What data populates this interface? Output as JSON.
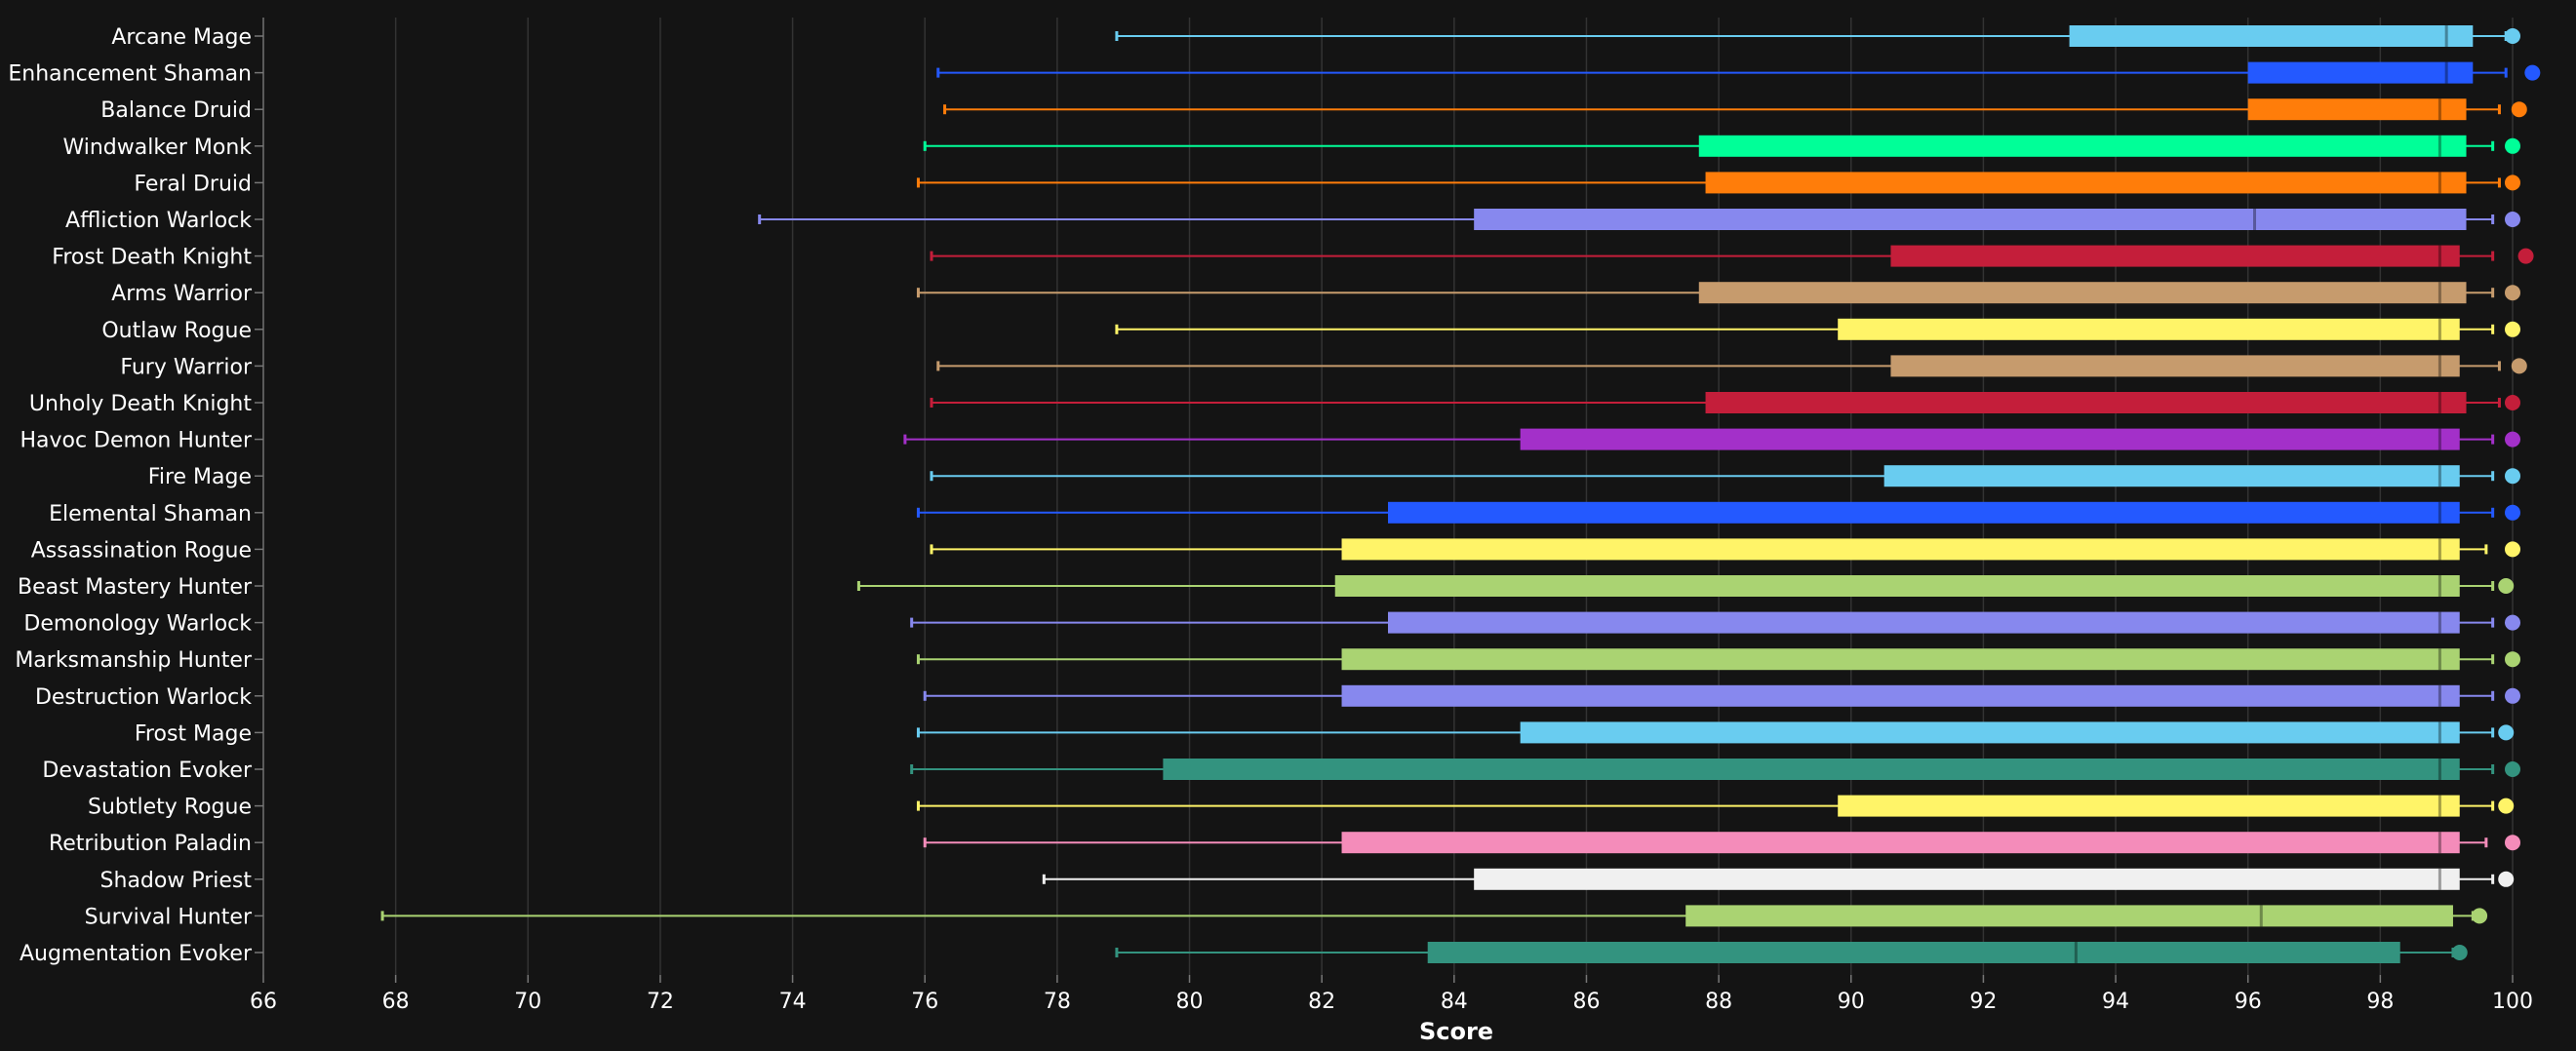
{
  "chart_data": {
    "type": "boxplot",
    "xlabel": "Score",
    "xlim": [
      66,
      100
    ],
    "x_ticks": [
      "66",
      "68",
      "70",
      "72",
      "74",
      "76",
      "78",
      "80",
      "82",
      "84",
      "86",
      "88",
      "90",
      "92",
      "94",
      "96",
      "98",
      "100"
    ],
    "grid": "vertical",
    "background": "#141414",
    "series": [
      {
        "name": "Arcane Mage",
        "color": "#69CCF0",
        "min": 78.9,
        "q1": 93.3,
        "median": 99.0,
        "q3": 99.4,
        "max": 99.9,
        "top": 100.0
      },
      {
        "name": "Enhancement Shaman",
        "color": "#2459FF",
        "min": 76.2,
        "q1": 96.0,
        "median": 99.0,
        "q3": 99.4,
        "max": 99.9,
        "top": 100.3
      },
      {
        "name": "Balance Druid",
        "color": "#FF7D0A",
        "min": 76.3,
        "q1": 96.0,
        "median": 98.9,
        "q3": 99.3,
        "max": 99.8,
        "top": 100.1
      },
      {
        "name": "Windwalker Monk",
        "color": "#00FF98",
        "min": 76.0,
        "q1": 87.7,
        "median": 98.9,
        "q3": 99.3,
        "max": 99.7,
        "top": 100.0
      },
      {
        "name": "Feral Druid",
        "color": "#FF7D0A",
        "min": 75.9,
        "q1": 87.8,
        "median": 98.9,
        "q3": 99.3,
        "max": 99.8,
        "top": 100.0
      },
      {
        "name": "Affliction Warlock",
        "color": "#8788EE",
        "min": 73.5,
        "q1": 84.3,
        "median": 96.1,
        "q3": 99.3,
        "max": 99.7,
        "top": 100.0
      },
      {
        "name": "Frost Death Knight",
        "color": "#C41E3A",
        "min": 76.1,
        "q1": 90.6,
        "median": 98.9,
        "q3": 99.2,
        "max": 99.7,
        "top": 100.2
      },
      {
        "name": "Arms Warrior",
        "color": "#C69B6D",
        "min": 75.9,
        "q1": 87.7,
        "median": 98.9,
        "q3": 99.3,
        "max": 99.7,
        "top": 100.0
      },
      {
        "name": "Outlaw Rogue",
        "color": "#FFF468",
        "min": 78.9,
        "q1": 89.8,
        "median": 98.9,
        "q3": 99.2,
        "max": 99.7,
        "top": 100.0
      },
      {
        "name": "Fury Warrior",
        "color": "#C69B6D",
        "min": 76.2,
        "q1": 90.6,
        "median": 98.9,
        "q3": 99.2,
        "max": 99.8,
        "top": 100.1
      },
      {
        "name": "Unholy Death Knight",
        "color": "#C41E3A",
        "min": 76.1,
        "q1": 87.8,
        "median": 98.9,
        "q3": 99.3,
        "max": 99.8,
        "top": 100.0
      },
      {
        "name": "Havoc Demon Hunter",
        "color": "#A330C9",
        "min": 75.7,
        "q1": 85.0,
        "median": 98.9,
        "q3": 99.2,
        "max": 99.7,
        "top": 100.0
      },
      {
        "name": "Fire Mage",
        "color": "#69CCF0",
        "min": 76.1,
        "q1": 90.5,
        "median": 98.9,
        "q3": 99.2,
        "max": 99.7,
        "top": 100.0
      },
      {
        "name": "Elemental Shaman",
        "color": "#2459FF",
        "min": 75.9,
        "q1": 83.0,
        "median": 98.9,
        "q3": 99.2,
        "max": 99.7,
        "top": 100.0
      },
      {
        "name": "Assassination Rogue",
        "color": "#FFF468",
        "min": 76.1,
        "q1": 82.3,
        "median": 98.9,
        "q3": 99.2,
        "max": 99.6,
        "top": 100.0
      },
      {
        "name": "Beast Mastery Hunter",
        "color": "#AAD372",
        "min": 75.0,
        "q1": 82.2,
        "median": 98.9,
        "q3": 99.2,
        "max": 99.7,
        "top": 99.9
      },
      {
        "name": "Demonology Warlock",
        "color": "#8788EE",
        "min": 75.8,
        "q1": 83.0,
        "median": 98.9,
        "q3": 99.2,
        "max": 99.7,
        "top": 100.0
      },
      {
        "name": "Marksmanship Hunter",
        "color": "#AAD372",
        "min": 75.9,
        "q1": 82.3,
        "median": 98.9,
        "q3": 99.2,
        "max": 99.7,
        "top": 100.0
      },
      {
        "name": "Destruction Warlock",
        "color": "#8788EE",
        "min": 76.0,
        "q1": 82.3,
        "median": 98.9,
        "q3": 99.2,
        "max": 99.7,
        "top": 100.0
      },
      {
        "name": "Frost Mage",
        "color": "#69CCF0",
        "min": 75.9,
        "q1": 85.0,
        "median": 98.9,
        "q3": 99.2,
        "max": 99.7,
        "top": 99.9
      },
      {
        "name": "Devastation Evoker",
        "color": "#33937F",
        "min": 75.8,
        "q1": 79.6,
        "median": 98.9,
        "q3": 99.2,
        "max": 99.7,
        "top": 100.0
      },
      {
        "name": "Subtlety Rogue",
        "color": "#FFF468",
        "min": 75.9,
        "q1": 89.8,
        "median": 98.9,
        "q3": 99.2,
        "max": 99.7,
        "top": 99.9
      },
      {
        "name": "Retribution Paladin",
        "color": "#F48CBA",
        "min": 76.0,
        "q1": 82.3,
        "median": 98.9,
        "q3": 99.2,
        "max": 99.6,
        "top": 100.0
      },
      {
        "name": "Shadow Priest",
        "color": "#F0F0F0",
        "min": 77.8,
        "q1": 84.3,
        "median": 98.9,
        "q3": 99.2,
        "max": 99.7,
        "top": 99.9
      },
      {
        "name": "Survival Hunter",
        "color": "#AAD372",
        "min": 67.8,
        "q1": 87.5,
        "median": 96.2,
        "q3": 99.1,
        "max": 99.4,
        "top": 99.5
      },
      {
        "name": "Augmentation Evoker",
        "color": "#33937F",
        "min": 78.9,
        "q1": 83.6,
        "median": 93.4,
        "q3": 98.3,
        "max": 99.1,
        "top": 99.2
      }
    ]
  }
}
